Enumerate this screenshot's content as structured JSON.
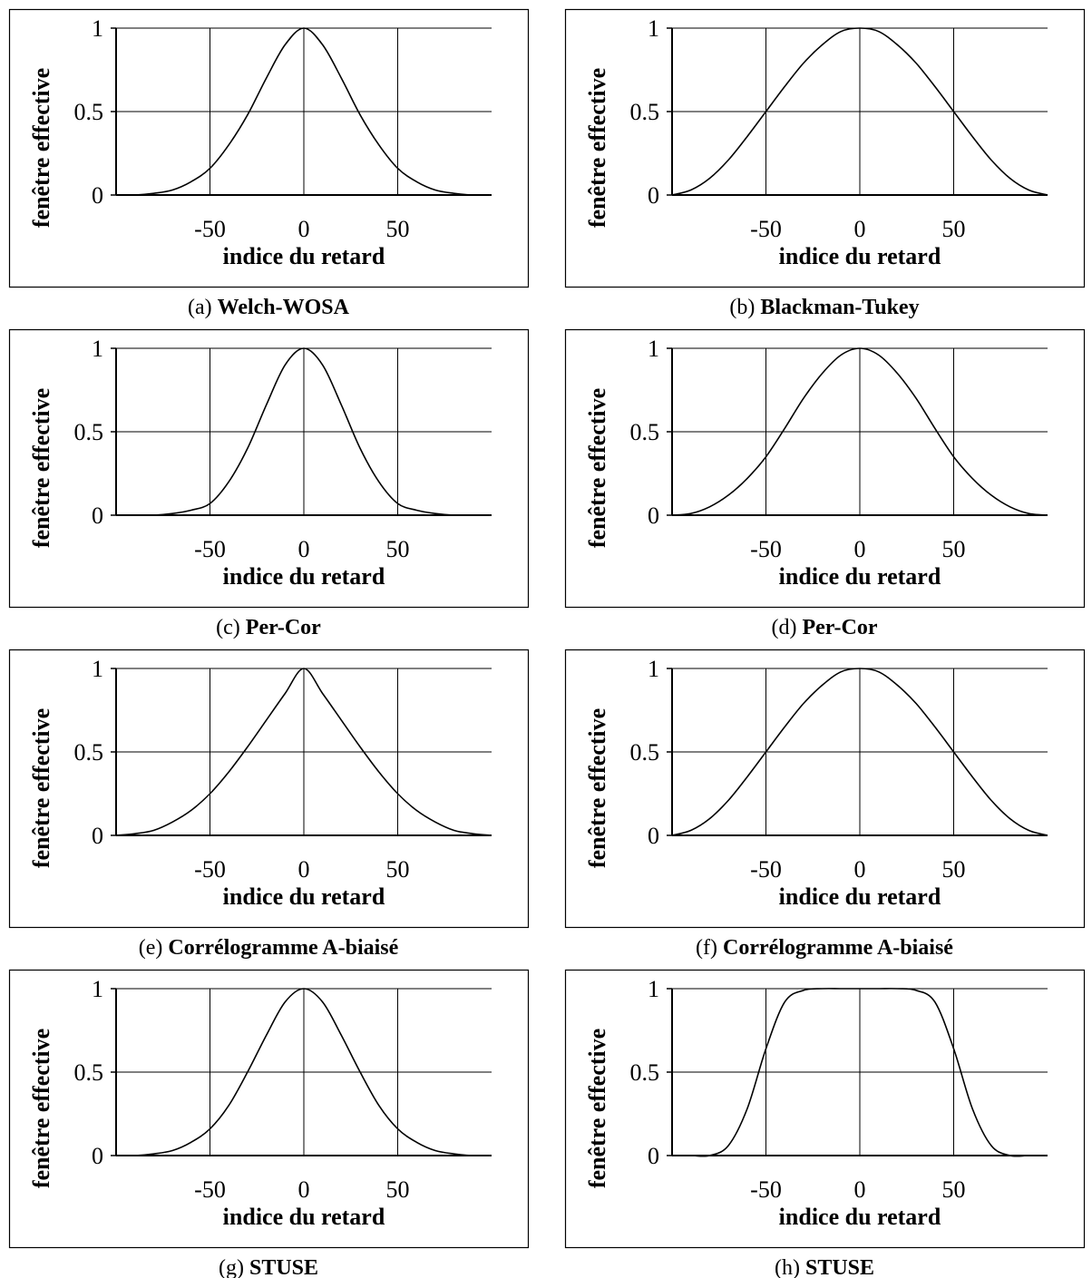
{
  "figure": {
    "ylabel": "fenêtre effective",
    "xlabel": "indice du retard"
  },
  "chart_data": [
    {
      "type": "line",
      "letter": "(a)",
      "title": "Welch-WOSA",
      "xlabel": "indice du retard",
      "ylabel": "fenêtre effective",
      "xlim": [
        -100,
        100
      ],
      "ylim": [
        0,
        1
      ],
      "xticks": [
        -50,
        0,
        50
      ],
      "yticks": [
        0,
        0.5,
        1
      ],
      "grid": true,
      "series": [
        {
          "x": [
            -100,
            -90,
            -80,
            -70,
            -60,
            -50,
            -40,
            -30,
            -20,
            -10,
            0,
            10,
            20,
            30,
            40,
            50,
            60,
            70,
            80,
            90,
            100
          ],
          "values": [
            0.0,
            0.0,
            0.01,
            0.03,
            0.08,
            0.16,
            0.3,
            0.48,
            0.7,
            0.9,
            1.0,
            0.9,
            0.7,
            0.48,
            0.3,
            0.16,
            0.08,
            0.03,
            0.01,
            0.0,
            0.0
          ]
        }
      ]
    },
    {
      "type": "line",
      "letter": "(b)",
      "title": "Blackman-Tukey",
      "xlabel": "indice du retard",
      "ylabel": "fenêtre effective",
      "xlim": [
        -100,
        100
      ],
      "ylim": [
        0,
        1
      ],
      "xticks": [
        -50,
        0,
        50
      ],
      "yticks": [
        0,
        0.5,
        1
      ],
      "grid": true,
      "series": [
        {
          "x": [
            -100,
            -90,
            -80,
            -70,
            -60,
            -50,
            -40,
            -30,
            -20,
            -10,
            0,
            10,
            20,
            30,
            40,
            50,
            60,
            70,
            80,
            90,
            100
          ],
          "values": [
            0.0,
            0.03,
            0.1,
            0.21,
            0.35,
            0.5,
            0.65,
            0.79,
            0.9,
            0.98,
            1.0,
            0.98,
            0.9,
            0.79,
            0.65,
            0.5,
            0.35,
            0.21,
            0.1,
            0.03,
            0.0
          ]
        }
      ]
    },
    {
      "type": "line",
      "letter": "(c)",
      "title": "Per-Cor",
      "xlabel": "indice du retard",
      "ylabel": "fenêtre effective",
      "xlim": [
        -100,
        100
      ],
      "ylim": [
        0,
        1
      ],
      "xticks": [
        -50,
        0,
        50
      ],
      "yticks": [
        0,
        0.5,
        1
      ],
      "grid": true,
      "series": [
        {
          "x": [
            -100,
            -90,
            -80,
            -70,
            -60,
            -50,
            -40,
            -30,
            -20,
            -10,
            0,
            10,
            20,
            30,
            40,
            50,
            60,
            70,
            80,
            90,
            100
          ],
          "values": [
            0.0,
            0.0,
            0.0,
            0.01,
            0.03,
            0.07,
            0.2,
            0.4,
            0.66,
            0.9,
            1.0,
            0.9,
            0.66,
            0.4,
            0.2,
            0.07,
            0.03,
            0.01,
            0.0,
            0.0,
            0.0
          ]
        }
      ]
    },
    {
      "type": "line",
      "letter": "(d)",
      "title": "Per-Cor",
      "xlabel": "indice du retard",
      "ylabel": "fenêtre effective",
      "xlim": [
        -100,
        100
      ],
      "ylim": [
        0,
        1
      ],
      "xticks": [
        -50,
        0,
        50
      ],
      "yticks": [
        0,
        0.5,
        1
      ],
      "grid": true,
      "series": [
        {
          "x": [
            -100,
            -90,
            -80,
            -70,
            -60,
            -50,
            -40,
            -30,
            -20,
            -10,
            0,
            10,
            20,
            30,
            40,
            50,
            60,
            70,
            80,
            90,
            100
          ],
          "values": [
            0.0,
            0.01,
            0.05,
            0.12,
            0.22,
            0.35,
            0.52,
            0.7,
            0.85,
            0.96,
            1.0,
            0.96,
            0.85,
            0.7,
            0.52,
            0.35,
            0.22,
            0.12,
            0.05,
            0.01,
            0.0
          ]
        }
      ]
    },
    {
      "type": "line",
      "letter": "(e)",
      "title": "Corrélogramme A-biaisé",
      "xlabel": "indice du retard",
      "ylabel": "fenêtre effective",
      "xlim": [
        -100,
        100
      ],
      "ylim": [
        0,
        1
      ],
      "xticks": [
        -50,
        0,
        50
      ],
      "yticks": [
        0,
        0.5,
        1
      ],
      "grid": true,
      "series": [
        {
          "x": [
            -100,
            -90,
            -80,
            -70,
            -60,
            -50,
            -40,
            -30,
            -20,
            -10,
            0,
            10,
            20,
            30,
            40,
            50,
            60,
            70,
            80,
            90,
            100
          ],
          "values": [
            0.0,
            0.01,
            0.03,
            0.08,
            0.15,
            0.25,
            0.38,
            0.53,
            0.69,
            0.85,
            1.0,
            0.85,
            0.69,
            0.53,
            0.38,
            0.25,
            0.15,
            0.08,
            0.03,
            0.01,
            0.0
          ]
        }
      ]
    },
    {
      "type": "line",
      "letter": "(f)",
      "title": "Corrélogramme A-biaisé",
      "xlabel": "indice du retard",
      "ylabel": "fenêtre effective",
      "xlim": [
        -100,
        100
      ],
      "ylim": [
        0,
        1
      ],
      "xticks": [
        -50,
        0,
        50
      ],
      "yticks": [
        0,
        0.5,
        1
      ],
      "grid": true,
      "series": [
        {
          "x": [
            -100,
            -90,
            -80,
            -70,
            -60,
            -50,
            -40,
            -30,
            -20,
            -10,
            0,
            10,
            20,
            30,
            40,
            50,
            60,
            70,
            80,
            90,
            100
          ],
          "values": [
            0.0,
            0.03,
            0.1,
            0.21,
            0.35,
            0.5,
            0.65,
            0.79,
            0.9,
            0.98,
            1.0,
            0.98,
            0.9,
            0.79,
            0.65,
            0.5,
            0.35,
            0.21,
            0.1,
            0.03,
            0.0
          ]
        }
      ]
    },
    {
      "type": "line",
      "letter": "(g)",
      "title": "STUSE",
      "xlabel": "indice du retard",
      "ylabel": "fenêtre effective",
      "xlim": [
        -100,
        100
      ],
      "ylim": [
        0,
        1
      ],
      "xticks": [
        -50,
        0,
        50
      ],
      "yticks": [
        0,
        0.5,
        1
      ],
      "grid": true,
      "series": [
        {
          "x": [
            -100,
            -90,
            -80,
            -70,
            -60,
            -50,
            -40,
            -30,
            -20,
            -10,
            0,
            10,
            20,
            30,
            40,
            50,
            60,
            70,
            80,
            90,
            100
          ],
          "values": [
            0.0,
            0.0,
            0.01,
            0.03,
            0.08,
            0.16,
            0.3,
            0.5,
            0.72,
            0.92,
            1.0,
            0.92,
            0.72,
            0.5,
            0.3,
            0.16,
            0.08,
            0.03,
            0.01,
            0.0,
            0.0
          ]
        }
      ]
    },
    {
      "type": "line",
      "letter": "(h)",
      "title": "STUSE",
      "xlabel": "indice du retard",
      "ylabel": "fenêtre effective",
      "xlim": [
        -100,
        100
      ],
      "ylim": [
        0,
        1
      ],
      "xticks": [
        -50,
        0,
        50
      ],
      "yticks": [
        0,
        0.5,
        1
      ],
      "grid": true,
      "series": [
        {
          "x": [
            -100,
            -90,
            -80,
            -70,
            -60,
            -50,
            -40,
            -30,
            -20,
            -10,
            0,
            10,
            20,
            30,
            40,
            50,
            60,
            70,
            80,
            90,
            100
          ],
          "values": [
            0.0,
            0.0,
            0.0,
            0.06,
            0.28,
            0.64,
            0.92,
            0.99,
            1.0,
            1.0,
            1.0,
            1.0,
            1.0,
            0.99,
            0.92,
            0.64,
            0.28,
            0.06,
            0.0,
            0.0,
            0.0
          ]
        }
      ]
    }
  ]
}
